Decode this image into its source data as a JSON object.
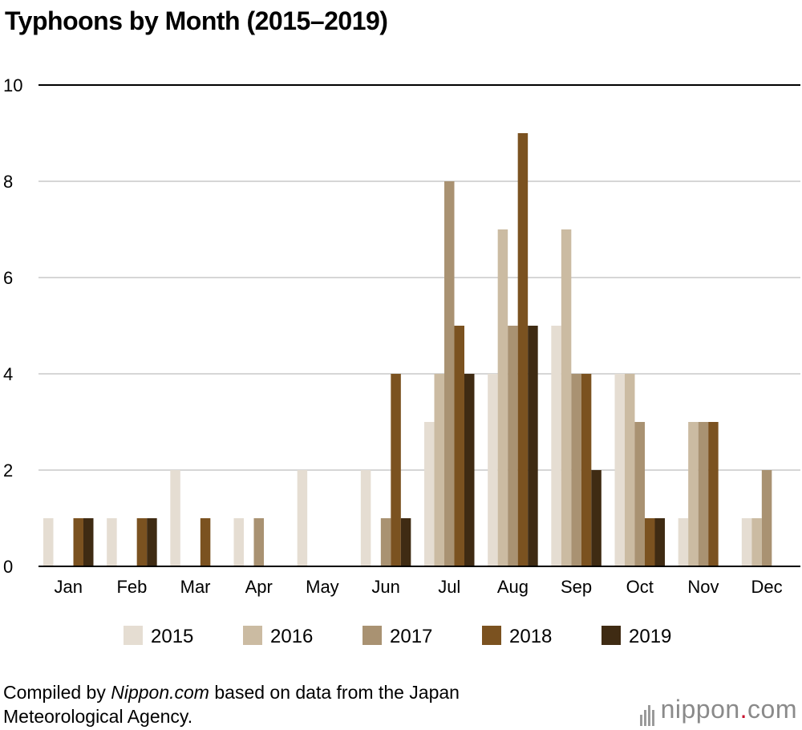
{
  "chart_data": {
    "type": "bar",
    "title": "Typhoons by Month (2015–2019)",
    "categories": [
      "Jan",
      "Feb",
      "Mar",
      "Apr",
      "May",
      "Jun",
      "Jul",
      "Aug",
      "Sep",
      "Oct",
      "Nov",
      "Dec"
    ],
    "series": [
      {
        "name": "2015",
        "color": "#e5ddd2",
        "values": [
          1,
          1,
          2,
          1,
          2,
          2,
          3,
          4,
          5,
          4,
          1,
          1
        ]
      },
      {
        "name": "2016",
        "color": "#cbbba2",
        "values": [
          0,
          0,
          0,
          0,
          0,
          0,
          4,
          7,
          7,
          4,
          3,
          1
        ]
      },
      {
        "name": "2017",
        "color": "#a99272",
        "values": [
          0,
          0,
          0,
          1,
          0,
          1,
          8,
          5,
          4,
          3,
          3,
          2
        ]
      },
      {
        "name": "2018",
        "color": "#7b5220",
        "values": [
          1,
          1,
          1,
          0,
          0,
          4,
          5,
          9,
          4,
          1,
          3,
          0
        ]
      },
      {
        "name": "2019",
        "color": "#3f2b13",
        "values": [
          1,
          1,
          0,
          0,
          0,
          1,
          4,
          5,
          2,
          1,
          0,
          0
        ]
      }
    ],
    "ylim": [
      0,
      10
    ],
    "yticks": [
      0,
      2,
      4,
      6,
      8,
      10
    ],
    "grid": true,
    "legend": "bottom"
  },
  "source": {
    "prefix": "Compiled by ",
    "italic": "Nippon.com",
    "suffix": " based on data from the Japan",
    "line2": "Meteorological Agency."
  },
  "brand": {
    "name": "nippon",
    "dot": ".",
    "tld": "com"
  }
}
